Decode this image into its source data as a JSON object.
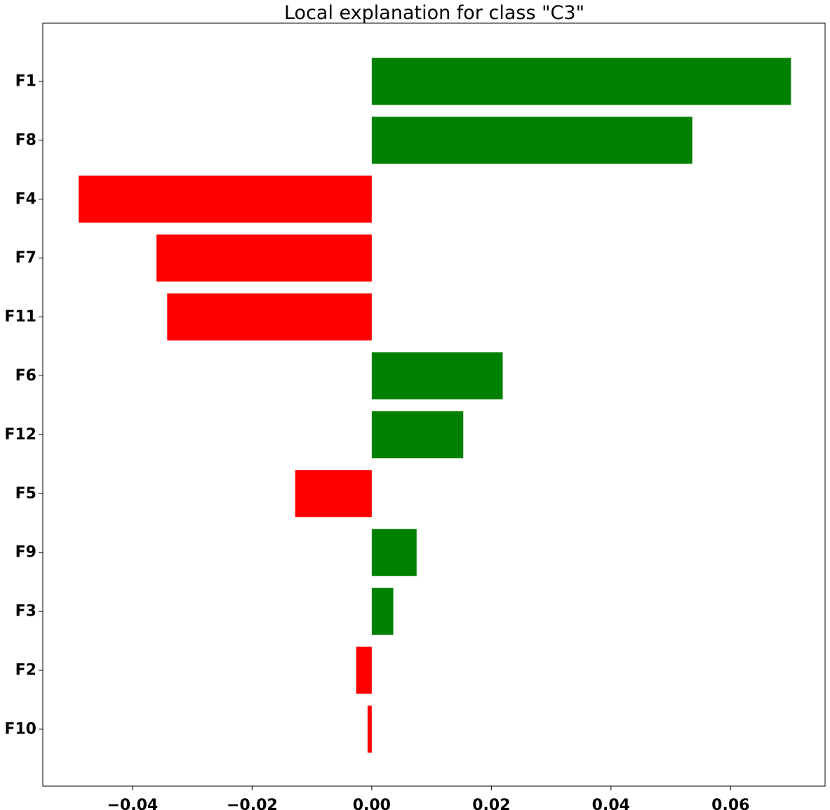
{
  "chart_data": {
    "type": "bar",
    "orientation": "horizontal",
    "title": "Local explanation for class \"C3\"",
    "xlabel": "",
    "ylabel": "",
    "categories": [
      "F1",
      "F8",
      "F4",
      "F7",
      "F11",
      "F6",
      "F12",
      "F5",
      "F9",
      "F3",
      "F2",
      "F10"
    ],
    "values": [
      0.0701,
      0.0536,
      -0.049,
      -0.036,
      -0.0342,
      0.0219,
      0.0153,
      -0.0128,
      0.0075,
      0.0036,
      -0.0026,
      -0.0007
    ],
    "xlim": [
      -0.055,
      0.0758
    ],
    "xticks": [
      -0.04,
      -0.02,
      0.0,
      0.02,
      0.04,
      0.06
    ],
    "xtick_labels": [
      "−0.04",
      "−0.02",
      "0.00",
      "0.02",
      "0.04",
      "0.06"
    ],
    "grid": false,
    "legend": "none",
    "colors": {
      "positive": "#008000",
      "negative": "#ff0000"
    }
  }
}
